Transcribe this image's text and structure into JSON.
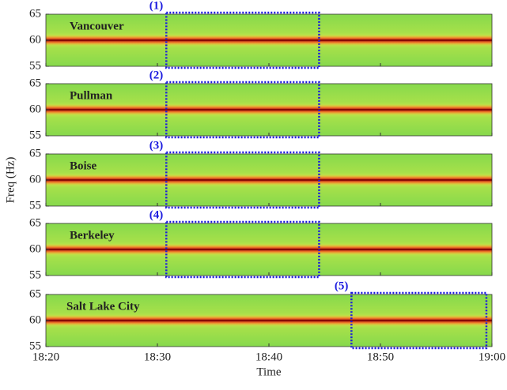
{
  "chart_data": [
    {
      "type": "spectrogram",
      "title": "Vancouver",
      "ylim": [
        55,
        65
      ],
      "yticks": [
        55,
        60,
        65
      ],
      "xlim": [
        0,
        40
      ],
      "dominant_freq": 60,
      "highlight": {
        "label": "(1)",
        "xlim": [
          10.8,
          24.5
        ]
      }
    },
    {
      "type": "spectrogram",
      "title": "Pullman",
      "ylim": [
        55,
        65
      ],
      "yticks": [
        55,
        60,
        65
      ],
      "xlim": [
        0,
        40
      ],
      "dominant_freq": 60,
      "highlight": {
        "label": "(2)",
        "xlim": [
          10.8,
          24.5
        ]
      }
    },
    {
      "type": "spectrogram",
      "title": "Boise",
      "ylim": [
        55,
        65
      ],
      "yticks": [
        55,
        60,
        65
      ],
      "xlim": [
        0,
        40
      ],
      "dominant_freq": 60,
      "ylabel": "Freq (Hz)",
      "highlight": {
        "label": "(3)",
        "xlim": [
          10.8,
          24.5
        ]
      }
    },
    {
      "type": "spectrogram",
      "title": "Berkeley",
      "ylim": [
        55,
        65
      ],
      "yticks": [
        55,
        60,
        65
      ],
      "xlim": [
        0,
        40
      ],
      "dominant_freq": 60,
      "highlight": {
        "label": "(4)",
        "xlim": [
          10.8,
          24.5
        ]
      }
    },
    {
      "type": "spectrogram",
      "title": "Salt Lake City",
      "ylim": [
        55,
        65
      ],
      "yticks": [
        55,
        60,
        65
      ],
      "xlim": [
        0,
        40
      ],
      "dominant_freq": 60,
      "xlabel": "Time",
      "xticks": [
        {
          "value": 0,
          "label": "18:20"
        },
        {
          "value": 10,
          "label": "18:30"
        },
        {
          "value": 20,
          "label": "18:40"
        },
        {
          "value": 30,
          "label": "18:50"
        },
        {
          "value": 40,
          "label": "19:00"
        }
      ],
      "highlight": {
        "label": "(5)",
        "xlim": [
          27.4,
          39.5
        ]
      }
    }
  ]
}
